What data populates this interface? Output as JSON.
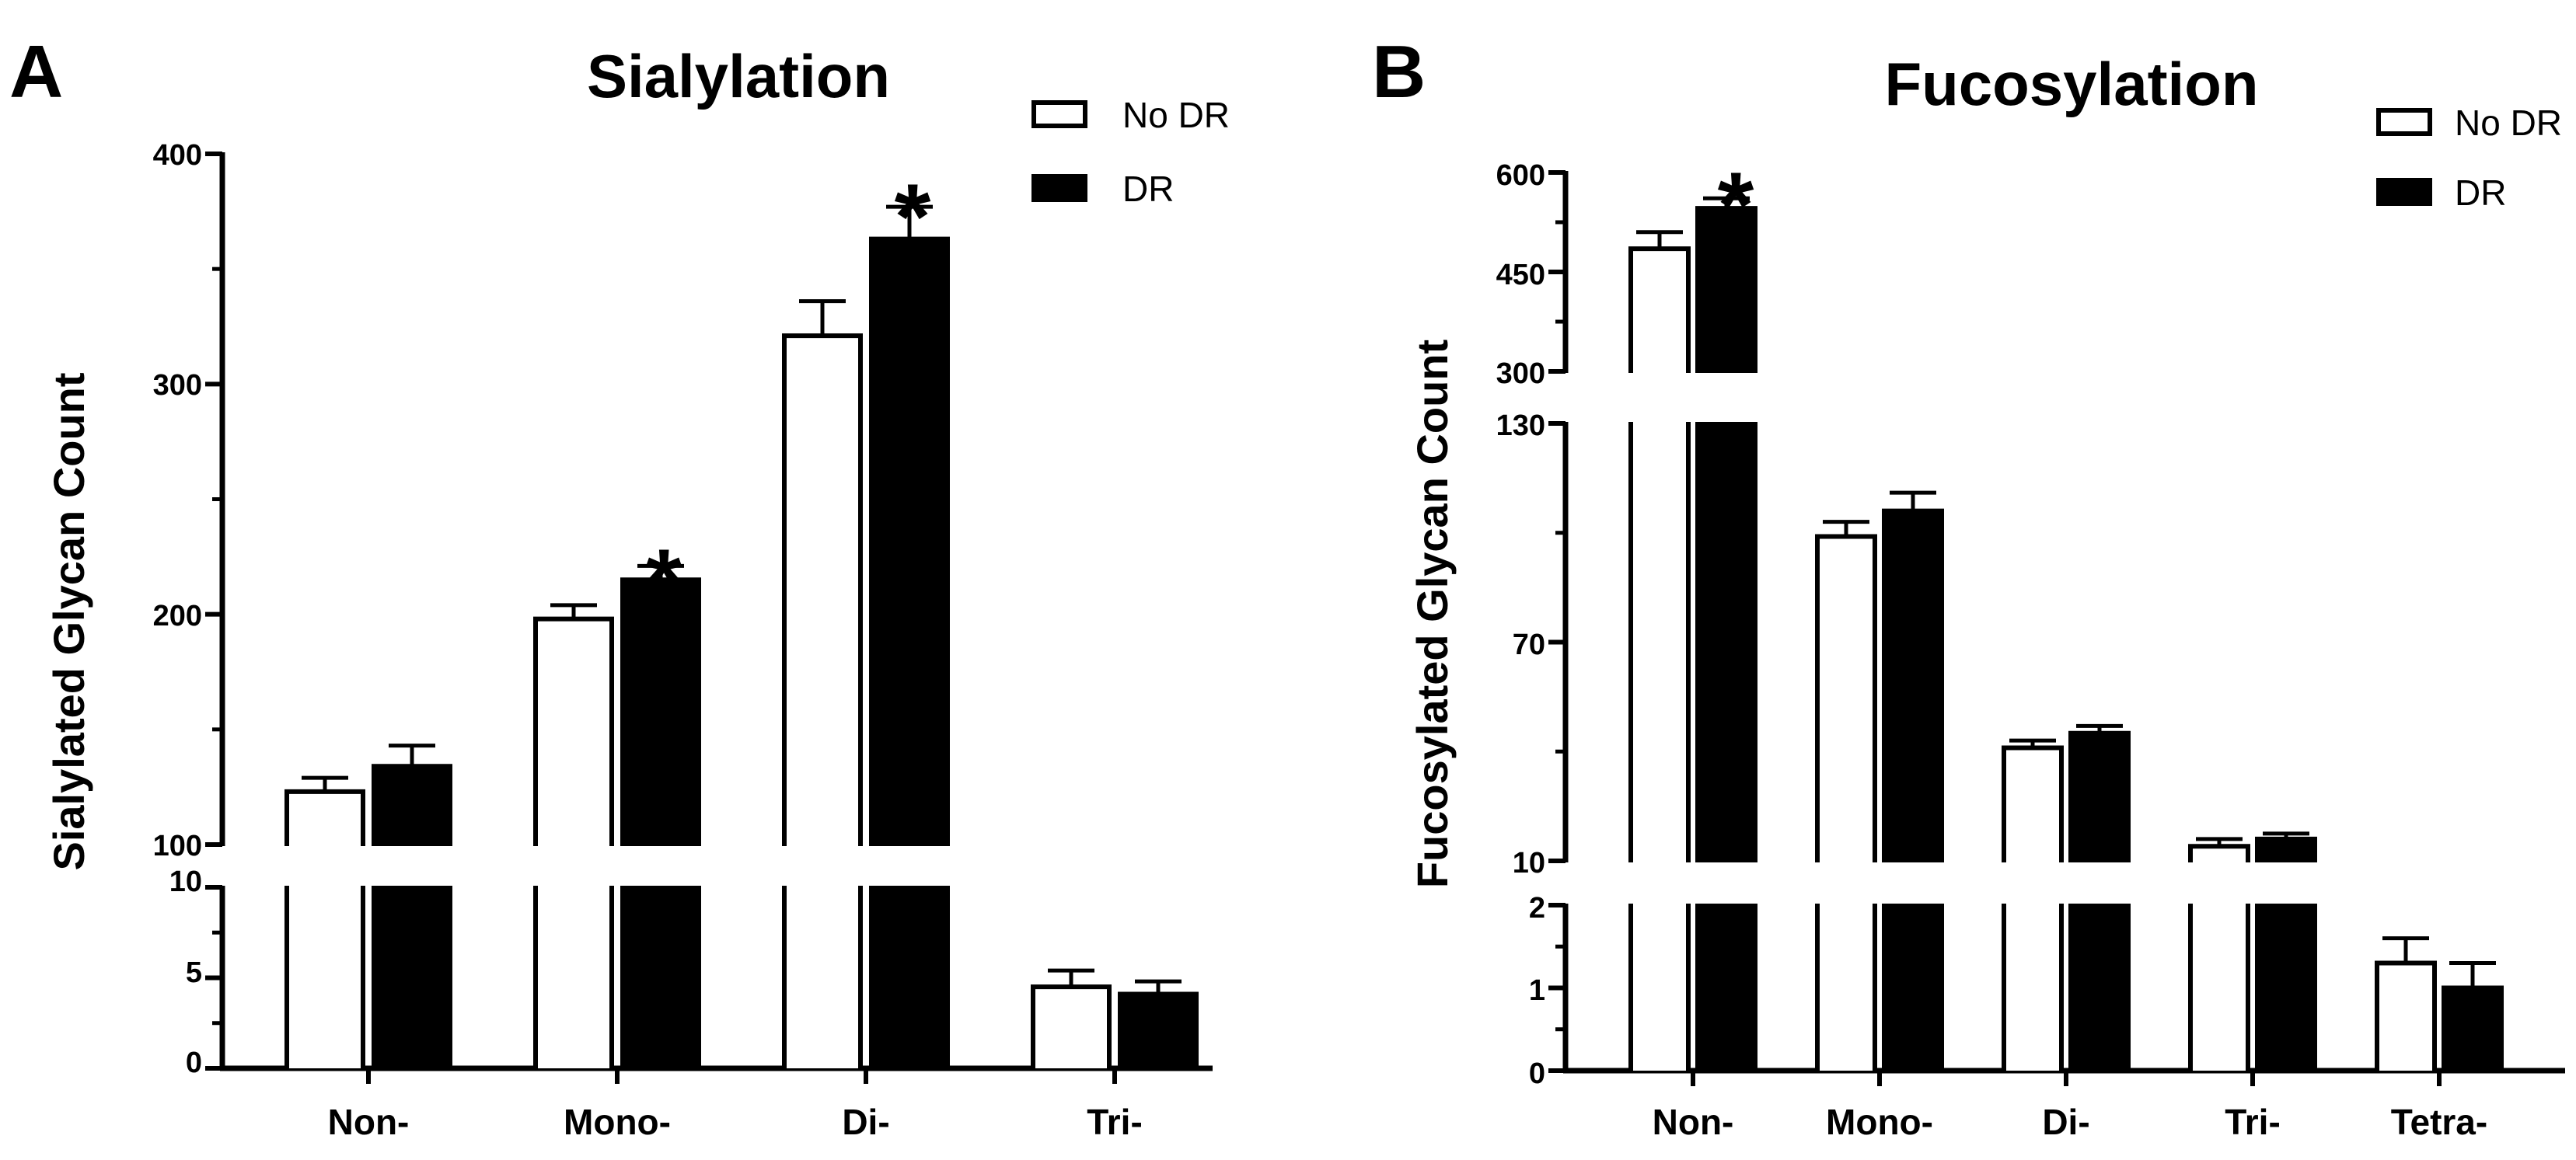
{
  "chart_data": [
    {
      "type": "bar",
      "panel_letter": "A",
      "title": "Sialylation",
      "ylabel": "Sialylated Glycan Count",
      "xlabel": "",
      "categories": [
        "Non-",
        "Mono-",
        "Di-",
        "Tri-"
      ],
      "series": [
        {
          "name": "No DR",
          "fill": "#ffffff",
          "values": [
            123,
            198,
            321,
            4.5
          ],
          "errors": [
            6,
            6,
            15,
            0.9
          ]
        },
        {
          "name": "DR",
          "fill": "#000000",
          "values": [
            134,
            215,
            363,
            4.1
          ],
          "errors": [
            9,
            6,
            14,
            0.7
          ]
        }
      ],
      "significance": [
        {
          "category": "Mono-",
          "series": "DR",
          "label": "*"
        },
        {
          "category": "Di-",
          "series": "DR",
          "label": "*"
        }
      ],
      "axis_segments": [
        {
          "range": [
            0,
            10
          ],
          "ticks": [
            0,
            5,
            10
          ],
          "tick_labels": [
            "0",
            "5",
            "10"
          ]
        },
        {
          "range": [
            100,
            400
          ],
          "ticks": [
            100,
            200,
            300,
            400
          ],
          "tick_labels": [
            "100",
            "200",
            "300",
            "400"
          ]
        }
      ],
      "legend_position": "top-right",
      "grid": false
    },
    {
      "type": "bar",
      "panel_letter": "B",
      "title": "Fucosylation",
      "ylabel": "Fucosylated Glycan Count",
      "xlabel": "",
      "categories": [
        "Non-",
        "Mono-",
        "Di-",
        "Tri-",
        "Tetra-"
      ],
      "series": [
        {
          "name": "No DR",
          "fill": "#ffffff",
          "values": [
            485,
            99,
            41,
            14,
            1.3
          ],
          "errors": [
            25,
            4,
            2,
            2,
            0.3
          ]
        },
        {
          "name": "DR",
          "fill": "#000000",
          "values": [
            546,
            106,
            45,
            16,
            1.0
          ],
          "errors": [
            15,
            5,
            2,
            1.5,
            0.3
          ]
        }
      ],
      "significance": [
        {
          "category": "Non-",
          "series": "DR",
          "label": "*"
        }
      ],
      "axis_segments": [
        {
          "range": [
            0,
            2
          ],
          "ticks": [
            0,
            1,
            2
          ],
          "tick_labels": [
            "0",
            "1",
            "2"
          ]
        },
        {
          "range": [
            10,
            130
          ],
          "ticks": [
            10,
            70,
            130
          ],
          "tick_labels": [
            "10",
            "70",
            "130"
          ]
        },
        {
          "range": [
            300,
            600
          ],
          "ticks": [
            300,
            450,
            600
          ],
          "tick_labels": [
            "300",
            "450",
            "600"
          ]
        }
      ],
      "legend_position": "top-right",
      "grid": false
    }
  ]
}
